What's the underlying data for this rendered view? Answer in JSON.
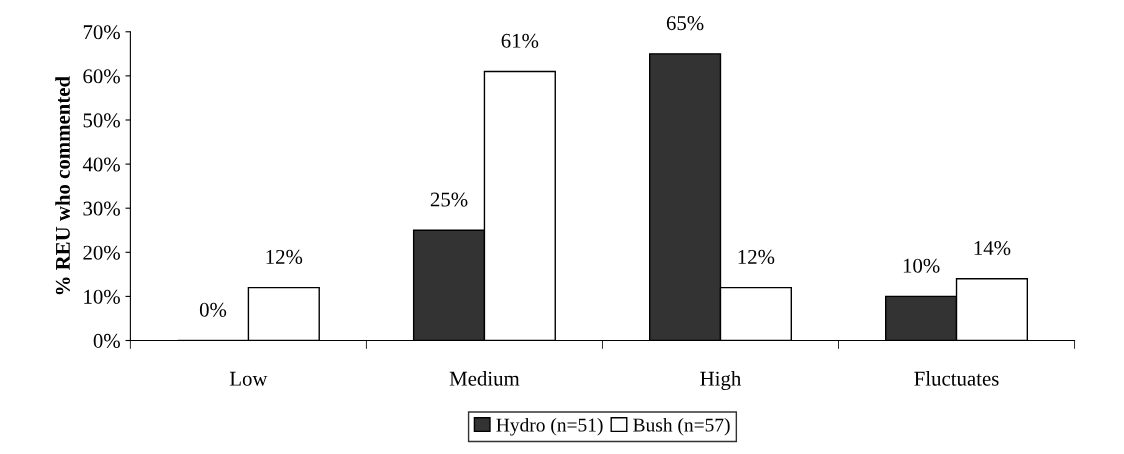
{
  "chart_data": {
    "type": "bar",
    "ylabel": "% REU who commented",
    "categories": [
      "Low",
      "Medium",
      "High",
      "Fluctuates"
    ],
    "series": [
      {
        "name": "Hydro (n=51)",
        "color": "#333333",
        "values": [
          0,
          25,
          65,
          10
        ],
        "value_labels": [
          "0%",
          "25%",
          "65%",
          "10%"
        ]
      },
      {
        "name": "Bush (n=57)",
        "color": "#ffffff",
        "values": [
          12,
          61,
          12,
          14
        ],
        "value_labels": [
          "12%",
          "61%",
          "12%",
          "14%"
        ]
      }
    ],
    "ylim": [
      0,
      70
    ],
    "yticks": [
      {
        "value": 0,
        "label": "0%"
      },
      {
        "value": 10,
        "label": "10%"
      },
      {
        "value": 20,
        "label": "20%"
      },
      {
        "value": 30,
        "label": "30%"
      },
      {
        "value": 40,
        "label": "40%"
      },
      {
        "value": 50,
        "label": "50%"
      },
      {
        "value": 60,
        "label": "60%"
      },
      {
        "value": 70,
        "label": "70%"
      }
    ],
    "grid": false,
    "legend": "bottom"
  }
}
